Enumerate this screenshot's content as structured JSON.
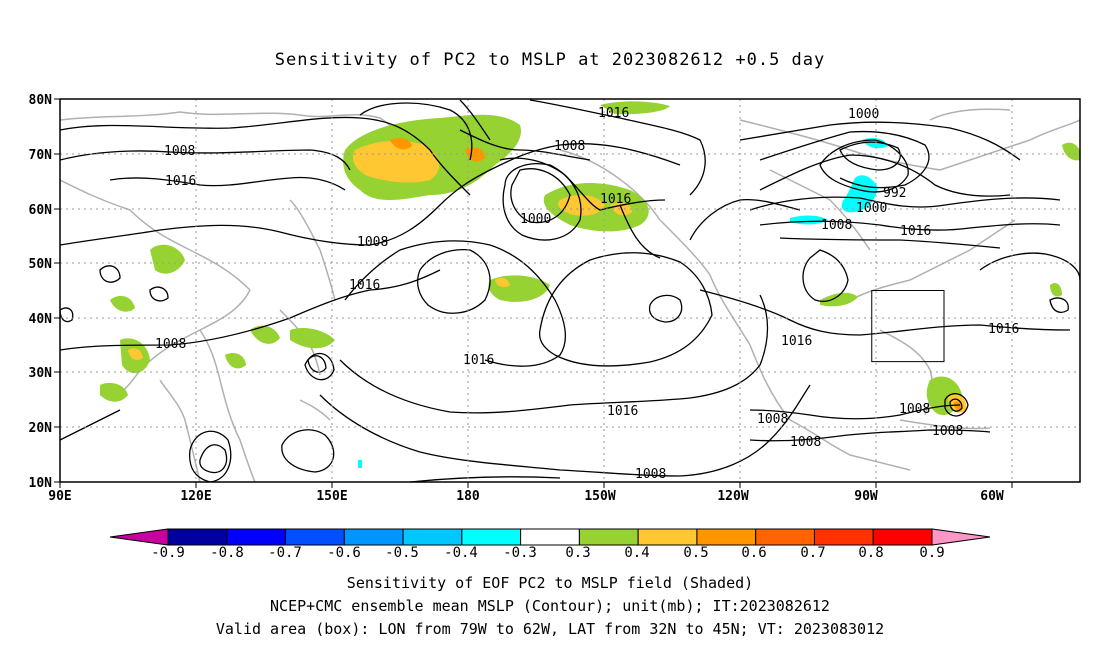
{
  "title": "Sensitivity of PC2 to MSLP at 2023082612 +0.5 day",
  "map": {
    "lat_labels": [
      "80N",
      "70N",
      "60N",
      "50N",
      "40N",
      "30N",
      "20N",
      "10N"
    ],
    "lon_labels": [
      "90E",
      "120E",
      "150E",
      "180",
      "150W",
      "120W",
      "90W",
      "60W"
    ],
    "contour_labels": [
      {
        "text": "1016"
      },
      {
        "text": "1008"
      },
      {
        "text": "1016"
      },
      {
        "text": "1008"
      },
      {
        "text": "1016"
      },
      {
        "text": "1000"
      },
      {
        "text": "1008"
      },
      {
        "text": "1016"
      },
      {
        "text": "1016"
      },
      {
        "text": "1016"
      },
      {
        "text": "1008"
      },
      {
        "text": "1008"
      },
      {
        "text": "1000"
      },
      {
        "text": "992"
      },
      {
        "text": "1000"
      },
      {
        "text": "1008"
      },
      {
        "text": "1016"
      },
      {
        "text": "1016"
      },
      {
        "text": "1016"
      },
      {
        "text": "1008"
      },
      {
        "text": "1008"
      },
      {
        "text": "1008"
      },
      {
        "text": "1008"
      }
    ],
    "valid_box": {
      "lon_west": -79,
      "lon_east": -62,
      "lat_south": 32,
      "lat_north": 45
    }
  },
  "colorbar": {
    "labels": [
      "-0.9",
      "-0.8",
      "-0.7",
      "-0.6",
      "-0.5",
      "-0.4",
      "-0.3",
      "0.3",
      "0.4",
      "0.5",
      "0.6",
      "0.7",
      "0.8",
      "0.9"
    ],
    "colors": [
      "#0000a0",
      "#0000ff",
      "#0050ff",
      "#0096ff",
      "#00c8ff",
      "#00ffff",
      "#ffffff",
      "#96d232",
      "#ffc832",
      "#ff9600",
      "#ff6400",
      "#ff3200",
      "#ff0000"
    ],
    "low_color": "#c800a0",
    "high_color": "#ff96c8"
  },
  "captions": {
    "line1": "Sensitivity of EOF PC2 to MSLP field (Shaded)",
    "line2": "NCEP+CMC ensemble mean MSLP (Contour); unit(mb); IT:2023082612",
    "line3": "Valid area (box): LON from 79W to 62W, LAT from 32N to 45N; VT: 2023083012"
  }
}
